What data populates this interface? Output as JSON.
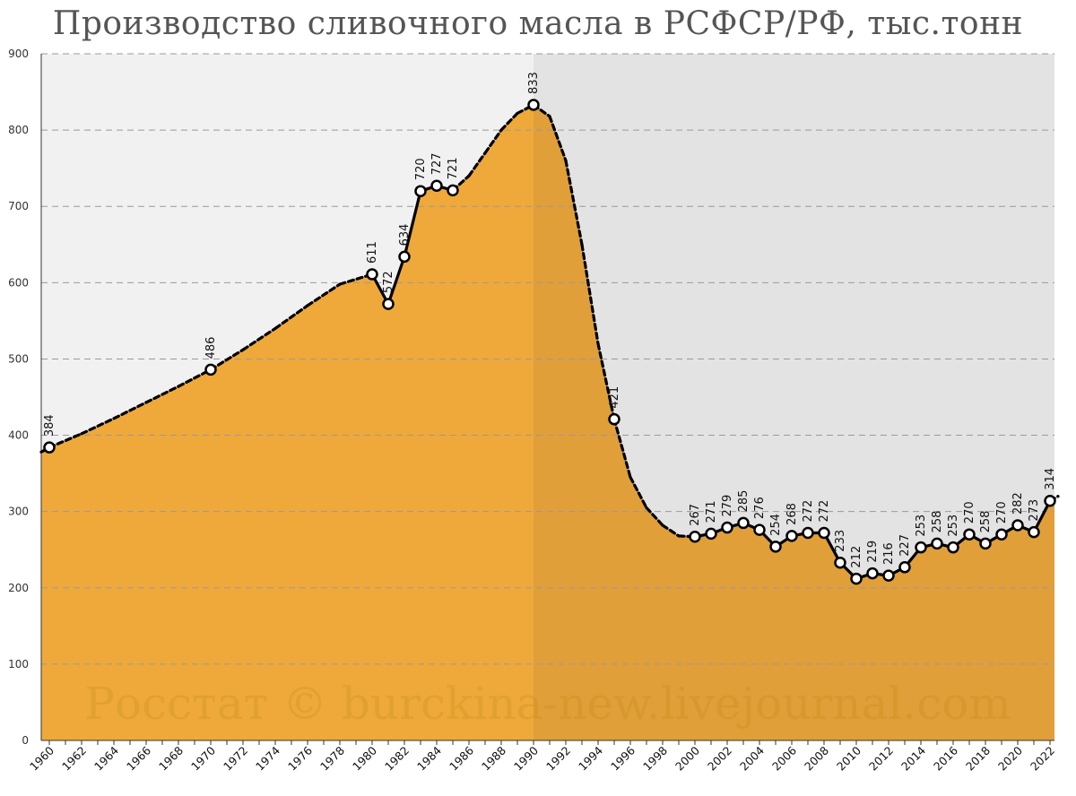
{
  "chart_data": {
    "type": "line",
    "title": "Производство сливочного масла в РСФСР/РФ, тыс.тонн",
    "watermark": "Росстат © burckina-new.livejournal.com",
    "ylim": [
      0,
      900
    ],
    "xlim": [
      1960,
      2023
    ],
    "y_ticks": [
      0,
      100,
      200,
      300,
      400,
      500,
      600,
      700,
      800,
      900
    ],
    "x_ticks": [
      "1960",
      "1962",
      "1964",
      "1966",
      "1968",
      "1970",
      "1972",
      "1974",
      "1976",
      "1978",
      "1980",
      "1982",
      "1984",
      "1986",
      "1988",
      "1990",
      "1992",
      "1994",
      "1996",
      "1998",
      "2000",
      "2002",
      "2004",
      "2006",
      "2008",
      "2010",
      "2012",
      "2014",
      "2016",
      "2018",
      "2020",
      "2022"
    ],
    "grid": true,
    "shaded_region_from_x": 1990,
    "colors": {
      "fill_left": "#eea93a",
      "fill_right": "#e09f39",
      "bg_left": "#f1f1f1",
      "bg_right": "#e3e3e3",
      "line": "#000000",
      "marker_fill": "#ffffff"
    },
    "series": [
      {
        "points": [
          {
            "x": 1960,
            "y": 384
          },
          {
            "x": 1970,
            "y": 486
          },
          {
            "x": 1980,
            "y": 611
          },
          {
            "x": 1981,
            "y": 572
          },
          {
            "x": 1982,
            "y": 634
          },
          {
            "x": 1983,
            "y": 720
          },
          {
            "x": 1984,
            "y": 727
          },
          {
            "x": 1985,
            "y": 721
          },
          {
            "x": 1990,
            "y": 833
          },
          {
            "x": 1995,
            "y": 421
          },
          {
            "x": 2000,
            "y": 267
          },
          {
            "x": 2001,
            "y": 271
          },
          {
            "x": 2002,
            "y": 279
          },
          {
            "x": 2003,
            "y": 285
          },
          {
            "x": 2004,
            "y": 276
          },
          {
            "x": 2005,
            "y": 254
          },
          {
            "x": 2006,
            "y": 268
          },
          {
            "x": 2007,
            "y": 272
          },
          {
            "x": 2008,
            "y": 272
          },
          {
            "x": 2009,
            "y": 233
          },
          {
            "x": 2010,
            "y": 212
          },
          {
            "x": 2011,
            "y": 219
          },
          {
            "x": 2012,
            "y": 216
          },
          {
            "x": 2013,
            "y": 227
          },
          {
            "x": 2014,
            "y": 253
          },
          {
            "x": 2015,
            "y": 258
          },
          {
            "x": 2016,
            "y": 253
          },
          {
            "x": 2017,
            "y": 270
          },
          {
            "x": 2018,
            "y": 258
          },
          {
            "x": 2019,
            "y": 270
          },
          {
            "x": 2020,
            "y": 282
          },
          {
            "x": 2021,
            "y": 273
          },
          {
            "x": 2022,
            "y": 314
          }
        ],
        "interpolated": [
          {
            "x": 1959.5,
            "y": 378
          },
          {
            "x": 1962,
            "y": 402
          },
          {
            "x": 1964,
            "y": 422
          },
          {
            "x": 1966,
            "y": 443
          },
          {
            "x": 1968,
            "y": 464
          },
          {
            "x": 1972,
            "y": 512
          },
          {
            "x": 1974,
            "y": 540
          },
          {
            "x": 1976,
            "y": 570
          },
          {
            "x": 1978,
            "y": 598
          },
          {
            "x": 1986,
            "y": 740
          },
          {
            "x": 1987,
            "y": 770
          },
          {
            "x": 1988,
            "y": 800
          },
          {
            "x": 1989,
            "y": 822
          },
          {
            "x": 1991,
            "y": 818
          },
          {
            "x": 1992,
            "y": 760
          },
          {
            "x": 1993,
            "y": 650
          },
          {
            "x": 1994,
            "y": 520
          },
          {
            "x": 1996,
            "y": 345
          },
          {
            "x": 1997,
            "y": 305
          },
          {
            "x": 1998,
            "y": 282
          },
          {
            "x": 1999,
            "y": 268
          },
          {
            "x": 2022.5,
            "y": 320
          }
        ]
      }
    ]
  }
}
